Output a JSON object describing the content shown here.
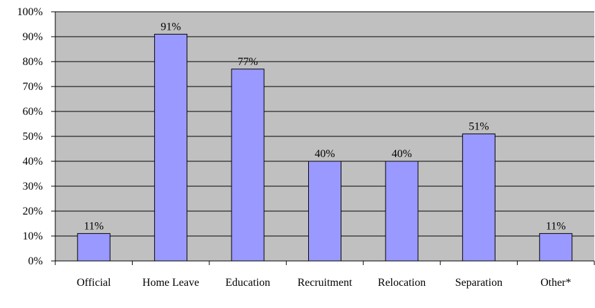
{
  "chart_data": {
    "type": "bar",
    "categories": [
      "Official",
      "Home Leave",
      "Education",
      "Recruitment",
      "Relocation",
      "Separation",
      "Other*"
    ],
    "values": [
      11,
      91,
      77,
      40,
      40,
      51,
      11
    ],
    "value_labels": [
      "11%",
      "91%",
      "77%",
      "40%",
      "40%",
      "51%",
      "11%"
    ],
    "color": "#9999ff",
    "ylim": [
      0,
      100
    ],
    "yticks": [
      {
        "value": 0,
        "label": "0%"
      },
      {
        "value": 10,
        "label": "10%"
      },
      {
        "value": 20,
        "label": "20%"
      },
      {
        "value": 30,
        "label": "30%"
      },
      {
        "value": 40,
        "label": "40%"
      },
      {
        "value": 50,
        "label": "50%"
      },
      {
        "value": 60,
        "label": "60%"
      },
      {
        "value": 70,
        "label": "70%"
      },
      {
        "value": 80,
        "label": "80%"
      },
      {
        "value": 90,
        "label": "90%"
      },
      {
        "value": 100,
        "label": "100%"
      }
    ],
    "grid": true
  }
}
